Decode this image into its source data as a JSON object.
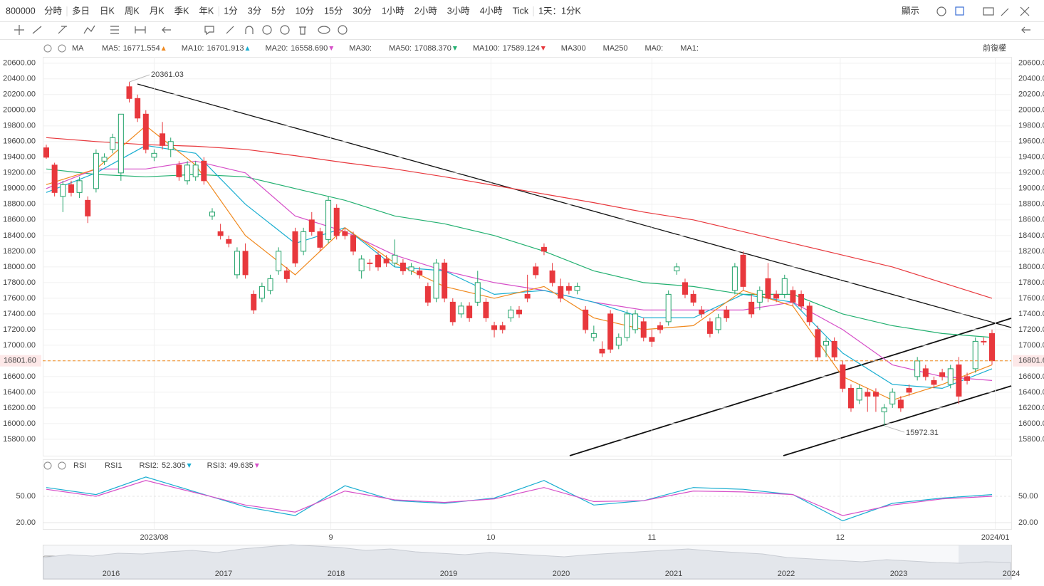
{
  "toolbar": {
    "symbol": "800000",
    "periods": [
      "分時",
      "多日",
      "日K",
      "周K",
      "月K",
      "季K",
      "年K",
      "1分",
      "3分",
      "5分",
      "10分",
      "15分",
      "30分",
      "1小時",
      "2小時",
      "3小時",
      "4小時",
      "Tick"
    ],
    "active_period": "日K",
    "interval": "1天：1分K",
    "display": "顯示"
  },
  "chart_data": {
    "type": "candlestick",
    "indicator": "MA",
    "adjust": "前復權",
    "legend": [
      {
        "name": "MA5:",
        "value": 16771.554,
        "color": "#f0891e",
        "trend": "up"
      },
      {
        "name": "MA10:",
        "value": 16701.913,
        "color": "#1aaed1",
        "trend": "up"
      },
      {
        "name": "MA20:",
        "value": 16558.69,
        "value_label": "16558.690",
        "color": "#d64fc8",
        "trend": "down"
      },
      {
        "name": "MA30:",
        "color": "#b8dde6"
      },
      {
        "name": "MA50:",
        "value": 17088.37,
        "value_label": "17088.370",
        "color": "#22b070",
        "trend": "down"
      },
      {
        "name": "MA100:",
        "value": 17589.124,
        "color": "#e8383d",
        "trend": "down"
      },
      {
        "name": "MA300",
        "color": "#a8ecf0"
      },
      {
        "name": "MA250",
        "color": "#c9c9d6"
      },
      {
        "name": "MA0:",
        "color": "#c9c9d6"
      },
      {
        "name": "MA1:",
        "color": "#c9c9d6"
      }
    ],
    "up_color": "#22a36a",
    "down_color": "#e8383d",
    "candles": [
      [
        19520,
        19560,
        19380,
        19400
      ],
      [
        19300,
        19330,
        18900,
        18950
      ],
      [
        18900,
        19100,
        18700,
        19050
      ],
      [
        19050,
        19100,
        18900,
        18950
      ],
      [
        18950,
        19150,
        18880,
        19100
      ],
      [
        18850,
        18900,
        18560,
        18650
      ],
      [
        19000,
        19500,
        18950,
        19450
      ],
      [
        19350,
        19450,
        19300,
        19400
      ],
      [
        19500,
        19700,
        19450,
        19650
      ],
      [
        19200,
        19950,
        19100,
        19950
      ],
      [
        20300,
        20361.03,
        20100,
        20150
      ],
      [
        20150,
        20200,
        19850,
        19900
      ],
      [
        19950,
        20000,
        19450,
        19500
      ],
      [
        19400,
        19500,
        19350,
        19450
      ],
      [
        19700,
        19850,
        19500,
        19550
      ],
      [
        19500,
        19650,
        19400,
        19600
      ],
      [
        19300,
        19350,
        19100,
        19150
      ],
      [
        19100,
        19350,
        19050,
        19300
      ],
      [
        19150,
        19350,
        19100,
        19300
      ],
      [
        19350,
        19400,
        19050,
        19100
      ],
      [
        18650,
        18750,
        18600,
        18700
      ],
      [
        18450,
        18550,
        18350,
        18400
      ],
      [
        18350,
        18400,
        18250,
        18300
      ],
      [
        17900,
        18250,
        17850,
        18200
      ],
      [
        18200,
        18300,
        17850,
        17900
      ],
      [
        17650,
        17700,
        17400,
        17450
      ],
      [
        17600,
        17800,
        17550,
        17750
      ],
      [
        17700,
        17900,
        17650,
        17850
      ],
      [
        17950,
        18250,
        17900,
        18200
      ],
      [
        17950,
        18000,
        17800,
        17850
      ],
      [
        18450,
        18500,
        18000,
        18050
      ],
      [
        18200,
        18500,
        18150,
        18450
      ],
      [
        18600,
        18700,
        18400,
        18450
      ],
      [
        18450,
        18500,
        18200,
        18250
      ],
      [
        18350,
        18900,
        18300,
        18850
      ],
      [
        18750,
        18800,
        18350,
        18400
      ],
      [
        18450,
        18500,
        18350,
        18400
      ],
      [
        18400,
        18450,
        18150,
        18200
      ],
      [
        17950,
        18150,
        17850,
        18100
      ],
      [
        18050,
        18100,
        17950,
        18050
      ],
      [
        18150,
        18200,
        17950,
        18000
      ],
      [
        18100,
        18150,
        18000,
        18050
      ],
      [
        18050,
        18350,
        18000,
        18150
      ],
      [
        18050,
        18100,
        17900,
        17950
      ],
      [
        17950,
        18050,
        17900,
        18000
      ],
      [
        17950,
        18000,
        17850,
        17900
      ],
      [
        17750,
        17800,
        17500,
        17550
      ],
      [
        17600,
        18100,
        17550,
        18050
      ],
      [
        18050,
        18100,
        17550,
        17600
      ],
      [
        17550,
        17600,
        17250,
        17300
      ],
      [
        17400,
        17550,
        17350,
        17500
      ],
      [
        17500,
        17550,
        17300,
        17350
      ],
      [
        17550,
        17950,
        17500,
        17800
      ],
      [
        17550,
        17600,
        17300,
        17350
      ],
      [
        17250,
        17300,
        17100,
        17200
      ],
      [
        17250,
        17300,
        17150,
        17200
      ],
      [
        17350,
        17500,
        17300,
        17450
      ],
      [
        17450,
        17500,
        17350,
        17400
      ],
      [
        17650,
        17900,
        17550,
        17600
      ],
      [
        18000,
        18050,
        17850,
        17900
      ],
      [
        18250,
        18300,
        18150,
        18200
      ],
      [
        17950,
        18050,
        17750,
        17800
      ],
      [
        17750,
        17850,
        17550,
        17600
      ],
      [
        17750,
        17800,
        17650,
        17700
      ],
      [
        17700,
        17800,
        17650,
        17750
      ],
      [
        17450,
        17500,
        17150,
        17200
      ],
      [
        17100,
        17250,
        17050,
        17150
      ],
      [
        16950,
        17050,
        16850,
        16900
      ],
      [
        17400,
        17450,
        16900,
        16950
      ],
      [
        17000,
        17150,
        16950,
        17100
      ],
      [
        17100,
        17450,
        17050,
        17400
      ],
      [
        17200,
        17450,
        17150,
        17400
      ],
      [
        17300,
        17350,
        17050,
        17100
      ],
      [
        17100,
        17200,
        16980,
        17050
      ],
      [
        17250,
        17300,
        17150,
        17200
      ],
      [
        17300,
        17700,
        17250,
        17650
      ],
      [
        17950,
        18050,
        17900,
        18000
      ],
      [
        17800,
        17850,
        17600,
        17650
      ],
      [
        17650,
        17700,
        17500,
        17550
      ],
      [
        17450,
        17500,
        17350,
        17400
      ],
      [
        17300,
        17350,
        17100,
        17150
      ],
      [
        17200,
        17400,
        17150,
        17350
      ],
      [
        17450,
        17500,
        17300,
        17350
      ],
      [
        17700,
        18050,
        17650,
        18000
      ],
      [
        18150,
        18200,
        17700,
        17750
      ],
      [
        17550,
        17650,
        17350,
        17400
      ],
      [
        17550,
        17750,
        17450,
        17700
      ],
      [
        17850,
        18050,
        17550,
        17600
      ],
      [
        17650,
        17700,
        17550,
        17600
      ],
      [
        17650,
        17900,
        17600,
        17850
      ],
      [
        17700,
        17750,
        17500,
        17550
      ],
      [
        17650,
        17700,
        17450,
        17500
      ],
      [
        17500,
        17550,
        17250,
        17300
      ],
      [
        17200,
        17250,
        16800,
        16850
      ],
      [
        17000,
        17100,
        16850,
        17050
      ],
      [
        17050,
        17100,
        16800,
        16850
      ],
      [
        16750,
        16800,
        16400,
        16450
      ],
      [
        16450,
        16500,
        16150,
        16200
      ],
      [
        16300,
        16500,
        16250,
        16450
      ],
      [
        16400,
        16450,
        16150,
        16350
      ],
      [
        16400,
        16450,
        16150,
        16350
      ],
      [
        16150,
        16250,
        15972.31,
        16200
      ],
      [
        16250,
        16450,
        16200,
        16400
      ],
      [
        16300,
        16350,
        16150,
        16200
      ],
      [
        16450,
        16500,
        16350,
        16400
      ],
      [
        16600,
        16850,
        16550,
        16800
      ],
      [
        16700,
        16750,
        16550,
        16600
      ],
      [
        16550,
        16600,
        16450,
        16500
      ],
      [
        16650,
        16700,
        16550,
        16600
      ],
      [
        16500,
        16750,
        16450,
        16700
      ],
      [
        16750,
        16850,
        16250,
        16350
      ],
      [
        16600,
        16650,
        16500,
        16550
      ],
      [
        16700,
        17100,
        16650,
        17050
      ],
      [
        17050,
        17100,
        17000,
        17050
      ],
      [
        17150,
        17200,
        16750,
        16801.6
      ]
    ],
    "ma_index": [
      0,
      6,
      12,
      18,
      24,
      30,
      36,
      42,
      48,
      54,
      60,
      66,
      72,
      78,
      84,
      90,
      96,
      102,
      108,
      114
    ],
    "ma_series": [
      {
        "name": "MA100",
        "color": "#e8383d",
        "values": [
          19650,
          19600,
          19560,
          19540,
          19500,
          19420,
          19330,
          19250,
          19150,
          19040,
          18930,
          18820,
          18700,
          18600,
          18450,
          18300,
          18150,
          18000,
          17800,
          17600
        ]
      },
      {
        "name": "MA50",
        "color": "#22b070",
        "values": [
          19250,
          19180,
          19150,
          19180,
          19150,
          19000,
          18850,
          18650,
          18550,
          18400,
          18200,
          17950,
          17800,
          17750,
          17650,
          17650,
          17400,
          17250,
          17150,
          17100
        ]
      },
      {
        "name": "MA20",
        "color": "#d64fc8",
        "values": [
          19000,
          19250,
          19250,
          19350,
          19200,
          18650,
          18450,
          18150,
          17950,
          17800,
          17700,
          17550,
          17450,
          17450,
          17450,
          17550,
          17200,
          16750,
          16600,
          16550
        ]
      },
      {
        "name": "MA10",
        "color": "#1aaed1",
        "values": [
          18950,
          19200,
          19550,
          19450,
          18800,
          18300,
          18500,
          18000,
          17950,
          17650,
          17700,
          17550,
          17350,
          17350,
          17650,
          17550,
          16900,
          16500,
          16450,
          16700
        ]
      },
      {
        "name": "MA5",
        "color": "#f0891e",
        "values": [
          19050,
          19250,
          19800,
          19300,
          18400,
          17900,
          18500,
          18050,
          17750,
          17600,
          17750,
          17350,
          17200,
          17250,
          17700,
          17500,
          16600,
          16300,
          16500,
          16750
        ]
      }
    ],
    "ylim": [
      15590,
      20680
    ],
    "yticks": [
      {
        "value": 20600,
        "label": "20600.00"
      },
      {
        "value": 20400,
        "label": "20400.00"
      },
      {
        "value": 20200,
        "label": "20200.00"
      },
      {
        "value": 20000,
        "label": "20000.00"
      },
      {
        "value": 19800,
        "label": "19800.00"
      },
      {
        "value": 19600,
        "label": "19600.00"
      },
      {
        "value": 19400,
        "label": "19400.00"
      },
      {
        "value": 19200,
        "label": "19200.00"
      },
      {
        "value": 19000,
        "label": "19000.00"
      },
      {
        "value": 18800,
        "label": "18800.00"
      },
      {
        "value": 18600,
        "label": "18600.00"
      },
      {
        "value": 18400,
        "label": "18400.00"
      },
      {
        "value": 18200,
        "label": "18200.00"
      },
      {
        "value": 18000,
        "label": "18000.00"
      },
      {
        "value": 17800,
        "label": "17800.00"
      },
      {
        "value": 17600,
        "label": "17600.00"
      },
      {
        "value": 17400,
        "label": "17400.00"
      },
      {
        "value": 17200,
        "label": "17200.00"
      },
      {
        "value": 17000,
        "label": "17000.00"
      },
      {
        "value": 16800,
        "label": "16800.00"
      },
      {
        "value": 16600,
        "label": "16600.00"
      },
      {
        "value": 16400,
        "label": "16400.00"
      },
      {
        "value": 16200,
        "label": "16200.00"
      },
      {
        "value": 16000,
        "label": "16000.00"
      },
      {
        "value": 15800,
        "label": "15800.00"
      }
    ],
    "last_price": {
      "value": 16801.6,
      "label": "16801.60"
    },
    "high_annotation": {
      "value": 20361.03,
      "index": 10
    },
    "low_annotation": {
      "value": 15972.31,
      "index": 101
    },
    "xticks": [
      {
        "value": 13,
        "label": "2023/08"
      },
      {
        "value": 34.3,
        "label": "9"
      },
      {
        "value": 53.6,
        "label": "10"
      },
      {
        "value": 73,
        "label": "11"
      },
      {
        "value": 95.7,
        "label": "12"
      },
      {
        "value": 114.4,
        "label": "2024/01"
      }
    ],
    "grid": true,
    "rsi": {
      "name": "RSI",
      "legend": [
        {
          "name": "RSI1",
          "color": "#f5c08a"
        },
        {
          "name": "RSI2:",
          "value": 52.305,
          "color": "#1aaed1",
          "trend": "down"
        },
        {
          "name": "RSI3:",
          "value": 49.635,
          "color": "#d64fc8",
          "trend": "down"
        }
      ],
      "series": [
        {
          "name": "RSI2",
          "color": "#1aaed1",
          "values": [
            60,
            52,
            72,
            55,
            38,
            28,
            62,
            45,
            42,
            48,
            68,
            40,
            45,
            60,
            58,
            52,
            22,
            42,
            48,
            52
          ]
        },
        {
          "name": "RSI3",
          "color": "#d64fc8",
          "values": [
            58,
            50,
            68,
            54,
            40,
            32,
            56,
            46,
            43,
            47,
            60,
            44,
            45,
            56,
            55,
            52,
            28,
            40,
            47,
            50
          ]
        }
      ],
      "ylim": [
        12.7,
        92.2
      ],
      "yticks": [
        {
          "value": 50,
          "label": "50.00"
        },
        {
          "value": 20,
          "label": "20.00"
        }
      ]
    },
    "navigator": {
      "years": [
        "2016",
        "2017",
        "2018",
        "2019",
        "2020",
        "2021",
        "2022",
        "2023",
        "2024"
      ],
      "values": [
        30,
        34,
        32,
        36,
        35,
        38,
        40,
        37,
        42,
        45,
        48,
        46,
        44,
        40,
        42,
        38,
        36,
        34,
        37,
        35,
        33,
        31,
        34,
        36,
        38,
        40,
        42,
        39,
        37,
        35,
        30,
        28,
        26,
        24,
        27,
        25,
        23,
        22,
        24,
        23
      ]
    }
  }
}
